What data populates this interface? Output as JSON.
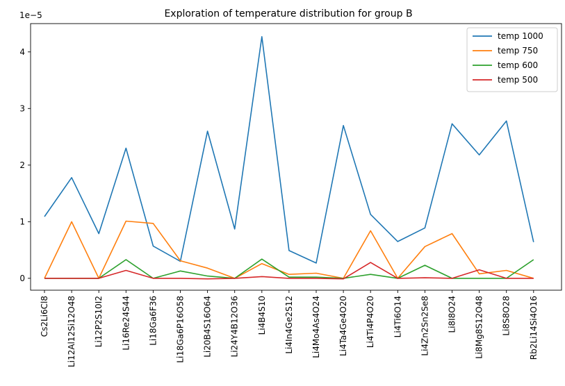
{
  "chart_data": {
    "type": "line",
    "title": "Exploration of temperature distribution for group B",
    "xlabel": "",
    "ylabel": "",
    "y_multiplier_label": "1e−5",
    "ylim": [
      -0.21,
      4.5
    ],
    "yticks": [
      0,
      1,
      2,
      3,
      4
    ],
    "grid": false,
    "legend_position": "top-right",
    "categories": [
      "Cs2Li6Cl8",
      "Li12Al12Si12O48",
      "Li12P2S10I2",
      "Li16Re24S44",
      "Li18Ga6F36",
      "Li18Ga6P16O58",
      "Li20B4S16O64",
      "Li24Y4B12O36",
      "Li4B4S10",
      "Li4In4Ge2S12",
      "Li4Mo4As4O24",
      "Li4Ta4Ge4O20",
      "Li4Ti4P4O20",
      "Li4Ti6O14",
      "Li4Zn2Sn2Se8",
      "Li8I8O24",
      "Li8Mg8S12O48",
      "Li8S8O28",
      "Rb2Li14Si4O16"
    ],
    "series": [
      {
        "name": "temp 1000",
        "color": "#1f77b4",
        "values": [
          1.09,
          1.78,
          0.79,
          2.3,
          0.57,
          0.3,
          2.6,
          0.87,
          4.27,
          0.49,
          0.27,
          2.7,
          1.13,
          0.65,
          0.89,
          2.73,
          2.18,
          2.78,
          0.64
        ]
      },
      {
        "name": "temp 750",
        "color": "#ff7f0e",
        "values": [
          0.0,
          1.0,
          0.0,
          1.01,
          0.97,
          0.31,
          0.18,
          0.0,
          0.26,
          0.07,
          0.09,
          0.0,
          0.84,
          0.0,
          0.56,
          0.79,
          0.08,
          0.14,
          0.0
        ]
      },
      {
        "name": "temp 600",
        "color": "#2ca02c",
        "values": [
          0.0,
          0.0,
          0.0,
          0.33,
          0.0,
          0.13,
          0.04,
          0.0,
          0.34,
          0.02,
          0.02,
          0.0,
          0.07,
          0.0,
          0.23,
          0.0,
          0.0,
          0.0,
          0.33
        ]
      },
      {
        "name": "temp 500",
        "color": "#d62728",
        "values": [
          0.0,
          0.0,
          0.0,
          0.14,
          0.0,
          0.0,
          -0.01,
          0.0,
          0.03,
          0.0,
          0.0,
          -0.01,
          0.28,
          0.0,
          0.01,
          0.0,
          0.15,
          0.0,
          0.0
        ]
      }
    ]
  }
}
